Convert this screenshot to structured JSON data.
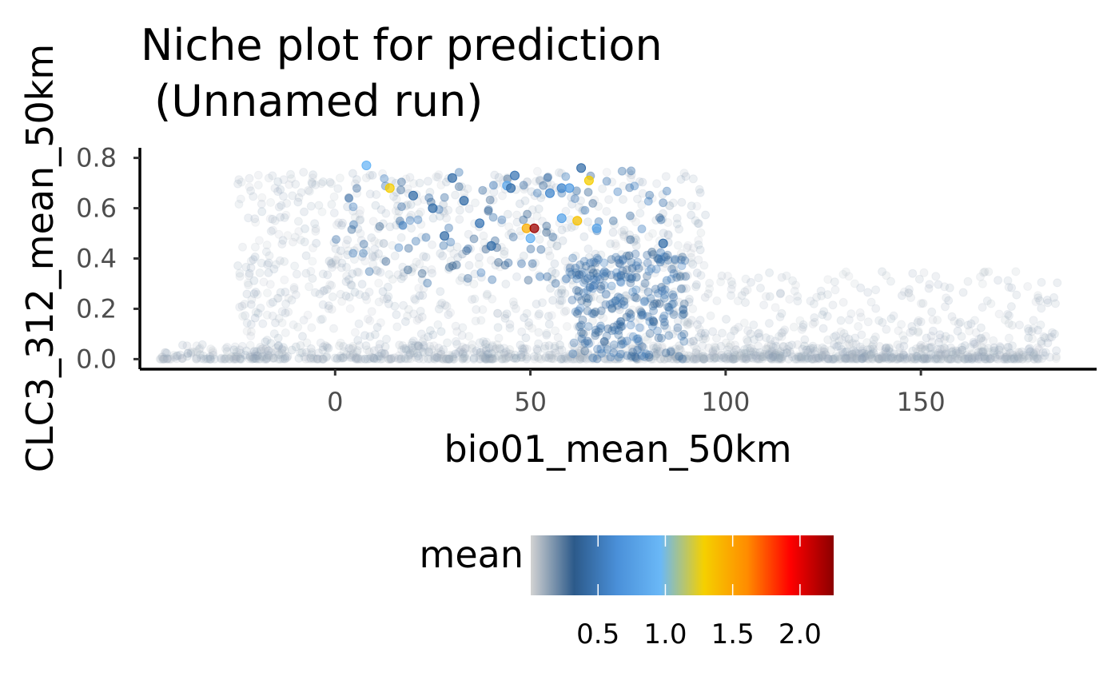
{
  "chart_data": {
    "type": "scatter",
    "title_line1": "Niche plot for prediction",
    "title_line2": " (Unnamed run)",
    "xlabel": "bio01_mean_50km",
    "ylabel": "CLC3_312_mean_50km",
    "xlim": [
      -50,
      195
    ],
    "ylim": [
      -0.04,
      0.84
    ],
    "x_ticks": [
      0,
      50,
      100,
      150
    ],
    "x_tick_labels": [
      "0",
      "50",
      "100",
      "150"
    ],
    "y_ticks": [
      0.0,
      0.2,
      0.4,
      0.6,
      0.8
    ],
    "y_tick_labels": [
      "0.0",
      "0.2",
      "0.4",
      "0.6",
      "0.8"
    ],
    "grid": false,
    "legend": {
      "title": "mean",
      "position": "bottom",
      "range": [
        0.0,
        2.25
      ],
      "ticks": [
        0.5,
        1.0,
        1.5,
        2.0
      ],
      "tick_labels": [
        "0.5",
        "1.0",
        "1.5",
        "2.0"
      ],
      "colors": [
        "#d3d3d3",
        "#2c5a8a",
        "#4a90d9",
        "#6ab8f7",
        "#f5d000",
        "#ff8c00",
        "#ff0000",
        "#8b0000"
      ]
    },
    "highlight_points": [
      {
        "x": 8,
        "y": 0.77,
        "v": 0.95
      },
      {
        "x": 14,
        "y": 0.68,
        "v": 1.3
      },
      {
        "x": 44,
        "y": 0.69,
        "v": 0.85
      },
      {
        "x": 46,
        "y": 0.73,
        "v": 0.5
      },
      {
        "x": 55,
        "y": 0.66,
        "v": 0.6
      },
      {
        "x": 58,
        "y": 0.68,
        "v": 0.6
      },
      {
        "x": 60,
        "y": 0.68,
        "v": 0.75
      },
      {
        "x": 62,
        "y": 0.55,
        "v": 1.35
      },
      {
        "x": 65,
        "y": 0.71,
        "v": 1.3
      },
      {
        "x": 49,
        "y": 0.52,
        "v": 1.45
      },
      {
        "x": 51,
        "y": 0.52,
        "v": 2.2
      },
      {
        "x": 50,
        "y": 0.48,
        "v": 0.9
      },
      {
        "x": 67,
        "y": 0.52,
        "v": 0.8
      },
      {
        "x": 58,
        "y": 0.56,
        "v": 0.8
      },
      {
        "x": 84,
        "y": 0.46,
        "v": 0.45
      },
      {
        "x": 37,
        "y": 0.54,
        "v": 0.5
      },
      {
        "x": 25,
        "y": 0.6,
        "v": 0.45
      },
      {
        "x": 28,
        "y": 0.49,
        "v": 0.45
      },
      {
        "x": 40,
        "y": 0.45,
        "v": 0.45
      },
      {
        "x": 30,
        "y": 0.72,
        "v": 0.45
      },
      {
        "x": 33,
        "y": 0.63,
        "v": 0.45
      },
      {
        "x": 20,
        "y": 0.65,
        "v": 0.45
      },
      {
        "x": 63,
        "y": 0.76,
        "v": 0.45
      },
      {
        "x": 45,
        "y": 0.68,
        "v": 0.45
      }
    ]
  }
}
